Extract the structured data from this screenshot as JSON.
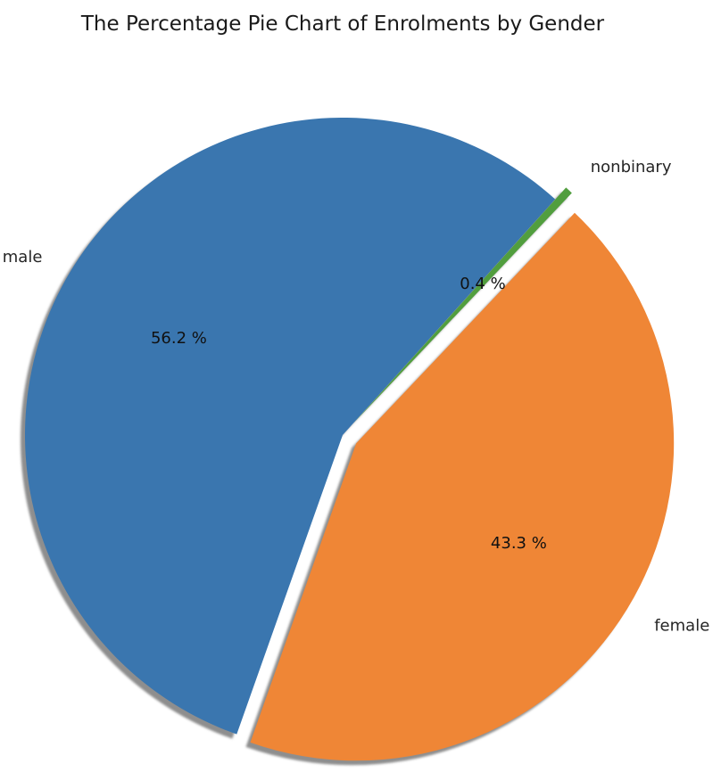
{
  "chart_data": {
    "type": "pie",
    "title": "The Percentage Pie Chart of Enrolments by Gender",
    "slices": [
      {
        "label": "male",
        "percent": 56.2,
        "percent_label": "56.2 %",
        "color": "#3a76af",
        "exploded": false
      },
      {
        "label": "female",
        "percent": 43.3,
        "percent_label": "43.3 %",
        "color": "#ef8636",
        "exploded": true
      },
      {
        "label": "nonbinary",
        "percent": 0.4,
        "percent_label": "0.4 %",
        "color": "#519e3e",
        "exploded": true
      }
    ],
    "shadow": true,
    "start_angle_deg": 48,
    "direction": "counterclockwise",
    "legend": "none"
  }
}
